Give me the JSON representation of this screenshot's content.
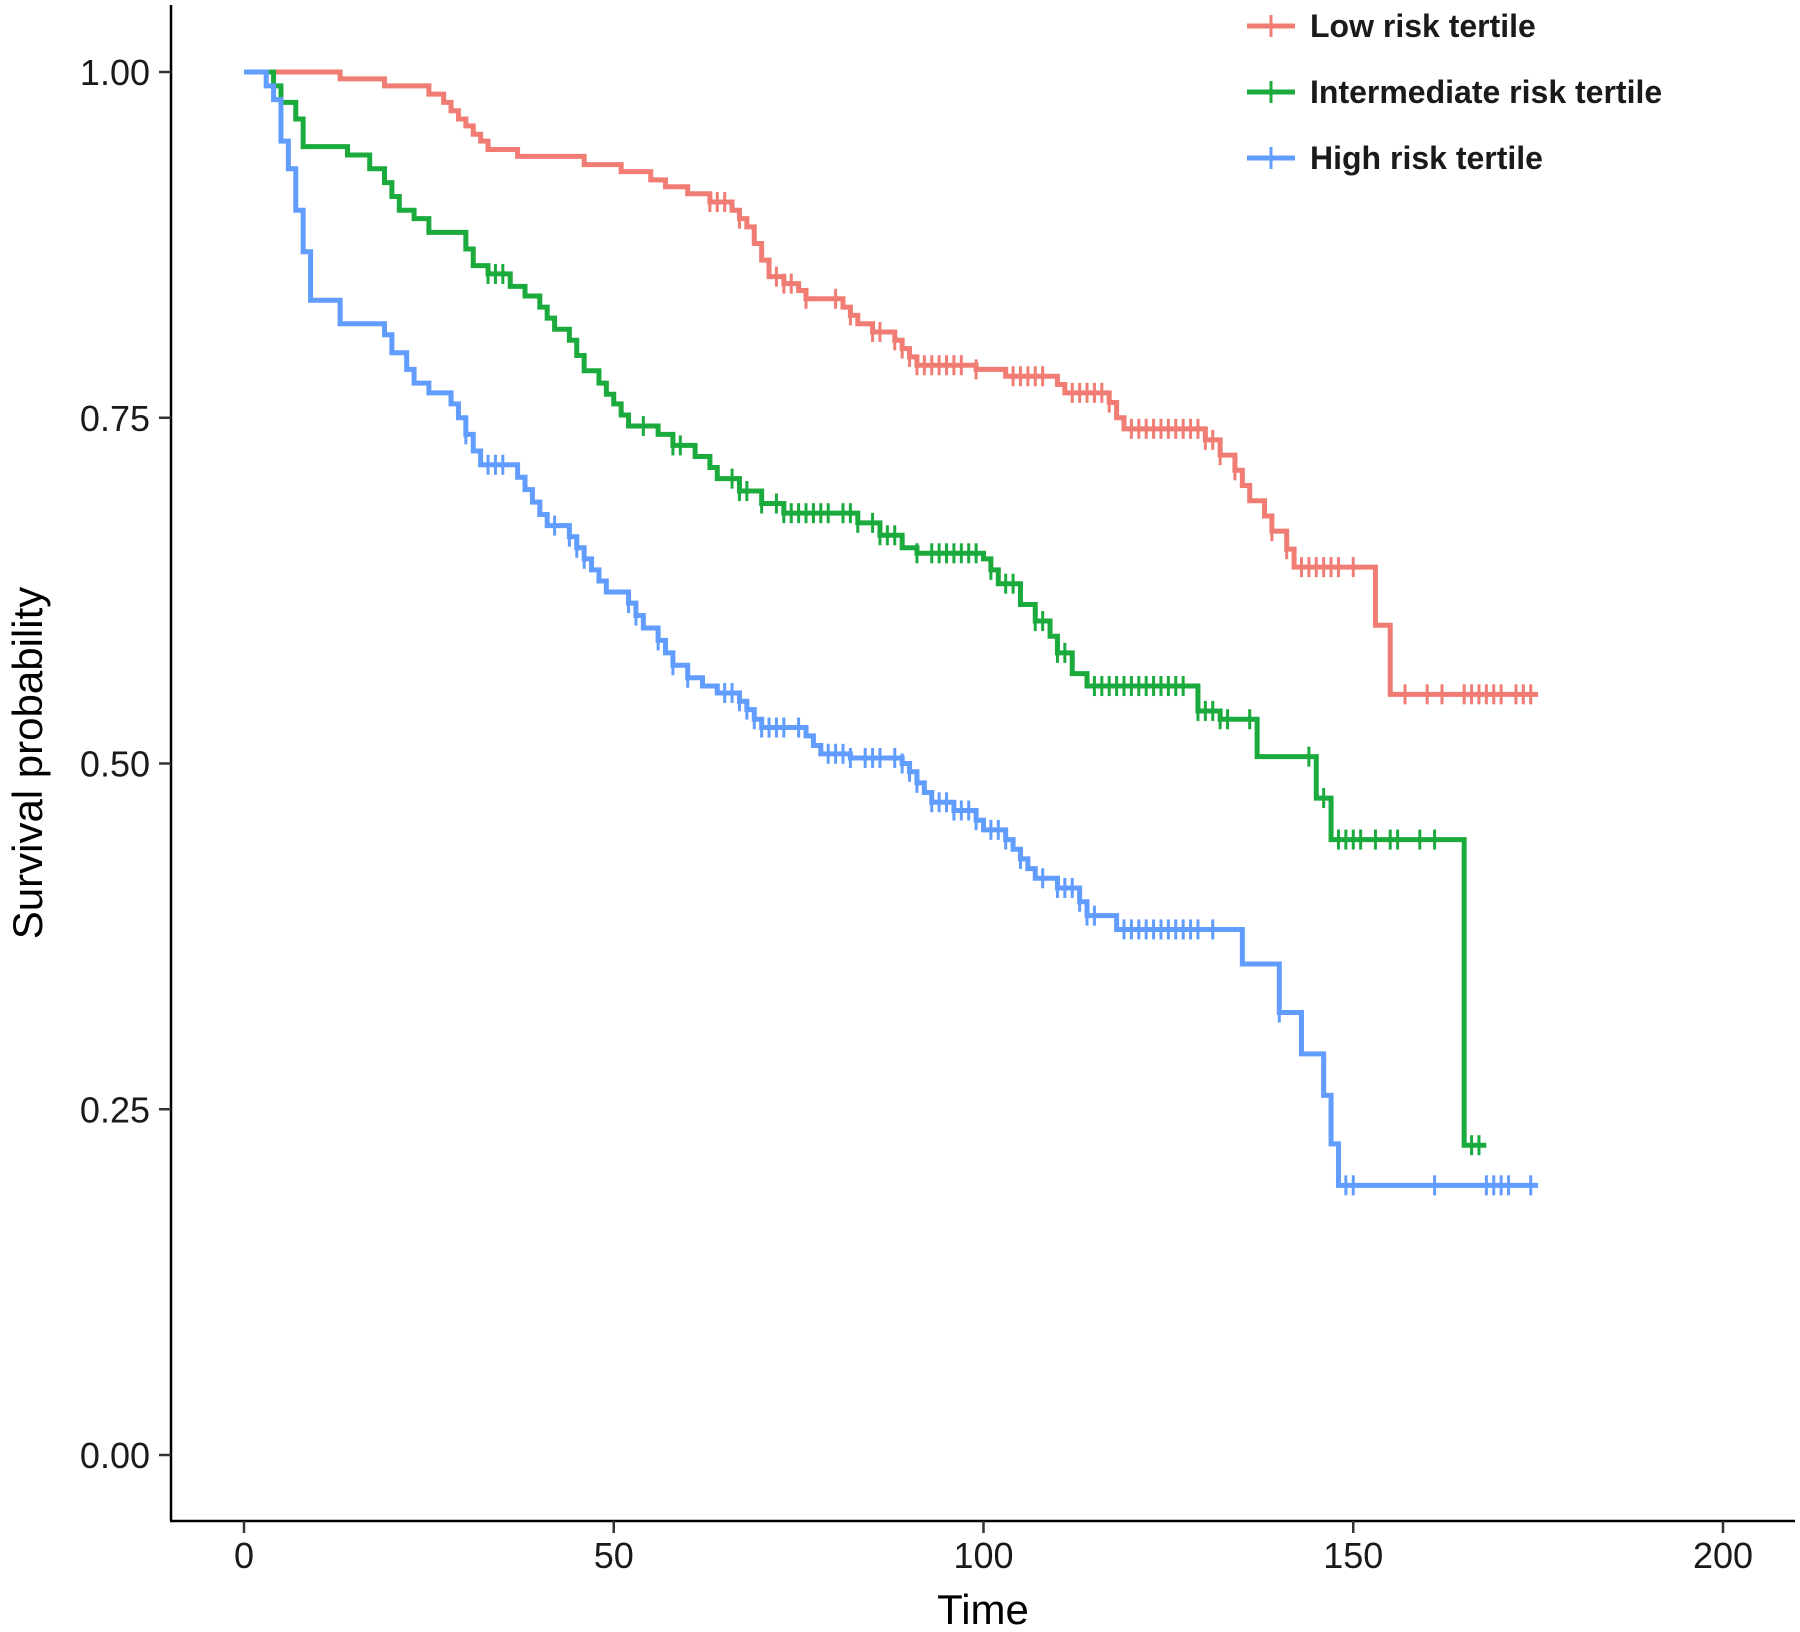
{
  "chart_data": {
    "type": "line",
    "title": "",
    "xlabel": "Time",
    "ylabel": "Survival probability",
    "xlim": [
      -10,
      210
    ],
    "ylim": [
      -0.05,
      1.05
    ],
    "x_ticks": [
      0,
      50,
      100,
      150,
      200
    ],
    "x_tick_labels": [
      "0",
      "50",
      "100",
      "150",
      "200"
    ],
    "y_ticks": [
      0,
      0.25,
      0.5,
      0.75,
      1.0
    ],
    "y_tick_labels": [
      "0.00",
      "0.25",
      "0.50",
      "0.75",
      "1.00"
    ],
    "grid": false,
    "legend_position": "top-right",
    "series": [
      {
        "name": "Low risk tertile",
        "color": "#F07C73",
        "steps": [
          [
            0,
            1.0
          ],
          [
            13,
            0.995
          ],
          [
            19,
            0.99
          ],
          [
            25,
            0.984
          ],
          [
            27,
            0.978
          ],
          [
            28,
            0.972
          ],
          [
            29,
            0.966
          ],
          [
            30,
            0.961
          ],
          [
            31,
            0.955
          ],
          [
            32,
            0.95
          ],
          [
            33,
            0.944
          ],
          [
            37,
            0.939
          ],
          [
            46,
            0.933
          ],
          [
            51,
            0.928
          ],
          [
            55,
            0.922
          ],
          [
            57,
            0.917
          ],
          [
            60,
            0.912
          ],
          [
            63,
            0.906
          ],
          [
            66,
            0.9
          ],
          [
            67,
            0.894
          ],
          [
            68,
            0.888
          ],
          [
            69,
            0.876
          ],
          [
            70,
            0.864
          ],
          [
            71,
            0.852
          ],
          [
            73,
            0.847
          ],
          [
            75,
            0.842
          ],
          [
            76,
            0.836
          ],
          [
            81,
            0.83
          ],
          [
            82,
            0.824
          ],
          [
            83,
            0.818
          ],
          [
            85,
            0.812
          ],
          [
            88,
            0.806
          ],
          [
            89,
            0.8
          ],
          [
            90,
            0.794
          ],
          [
            91,
            0.788
          ],
          [
            99,
            0.785
          ],
          [
            103,
            0.78
          ],
          [
            110,
            0.774
          ],
          [
            111,
            0.768
          ],
          [
            117,
            0.761
          ],
          [
            118,
            0.75
          ],
          [
            119,
            0.742
          ],
          [
            130,
            0.734
          ],
          [
            132,
            0.723
          ],
          [
            134,
            0.712
          ],
          [
            135,
            0.701
          ],
          [
            136,
            0.69
          ],
          [
            138,
            0.679
          ],
          [
            139,
            0.668
          ],
          [
            141,
            0.655
          ],
          [
            142,
            0.642
          ],
          [
            153,
            0.6
          ],
          [
            155,
            0.55
          ],
          [
            175,
            0.55
          ]
        ],
        "censor_x": [
          63,
          64,
          65,
          67,
          72,
          73,
          74,
          76,
          80,
          82,
          85,
          86,
          88,
          89,
          90,
          91,
          92,
          93,
          94,
          95,
          96,
          97,
          99,
          104,
          105,
          106,
          107,
          108,
          112,
          113,
          114,
          115,
          116,
          117,
          120,
          121,
          122,
          123,
          124,
          125,
          126,
          127,
          128,
          129,
          130,
          131,
          132,
          134,
          139,
          141,
          143,
          144,
          145,
          146,
          147,
          148,
          150,
          157,
          160,
          162,
          165,
          166,
          167,
          168,
          169,
          170,
          172,
          173,
          174
        ]
      },
      {
        "name": "Intermediate risk tertile",
        "color": "#1BAA3C",
        "steps": [
          [
            0,
            1.0
          ],
          [
            4,
            0.99
          ],
          [
            5,
            0.978
          ],
          [
            7,
            0.966
          ],
          [
            8,
            0.946
          ],
          [
            14,
            0.94
          ],
          [
            17,
            0.93
          ],
          [
            19,
            0.92
          ],
          [
            20,
            0.91
          ],
          [
            21,
            0.9
          ],
          [
            23,
            0.894
          ],
          [
            25,
            0.884
          ],
          [
            30,
            0.872
          ],
          [
            31,
            0.86
          ],
          [
            33,
            0.854
          ],
          [
            36,
            0.845
          ],
          [
            38,
            0.838
          ],
          [
            40,
            0.83
          ],
          [
            41,
            0.822
          ],
          [
            42,
            0.814
          ],
          [
            44,
            0.806
          ],
          [
            45,
            0.795
          ],
          [
            46,
            0.784
          ],
          [
            48,
            0.775
          ],
          [
            49,
            0.767
          ],
          [
            50,
            0.76
          ],
          [
            51,
            0.752
          ],
          [
            52,
            0.744
          ],
          [
            56,
            0.738
          ],
          [
            58,
            0.73
          ],
          [
            61,
            0.722
          ],
          [
            63,
            0.714
          ],
          [
            64,
            0.706
          ],
          [
            67,
            0.697
          ],
          [
            70,
            0.688
          ],
          [
            73,
            0.681
          ],
          [
            83,
            0.674
          ],
          [
            86,
            0.665
          ],
          [
            89,
            0.656
          ],
          [
            91,
            0.652
          ],
          [
            100,
            0.648
          ],
          [
            101,
            0.64
          ],
          [
            102,
            0.63
          ],
          [
            105,
            0.615
          ],
          [
            107,
            0.603
          ],
          [
            109,
            0.592
          ],
          [
            110,
            0.58
          ],
          [
            112,
            0.565
          ],
          [
            114,
            0.556
          ],
          [
            129,
            0.538
          ],
          [
            132,
            0.532
          ],
          [
            137,
            0.505
          ],
          [
            145,
            0.475
          ],
          [
            147,
            0.445
          ],
          [
            165,
            0.224
          ],
          [
            168,
            0.224
          ]
        ],
        "censor_x": [
          33,
          34,
          35,
          54,
          58,
          59,
          66,
          67,
          68,
          70,
          72,
          73,
          74,
          75,
          76,
          77,
          78,
          79,
          81,
          82,
          83,
          85,
          86,
          87,
          88,
          91,
          93,
          94,
          95,
          96,
          97,
          98,
          99,
          101,
          103,
          104,
          107,
          108,
          110,
          111,
          115,
          116,
          117,
          118,
          119,
          120,
          121,
          122,
          123,
          124,
          125,
          126,
          127,
          129,
          130,
          131,
          132,
          133,
          136,
          144,
          146,
          148,
          149,
          150,
          151,
          153,
          155,
          156,
          159,
          161,
          166,
          167
        ]
      },
      {
        "name": "High risk tertile",
        "color": "#619CFF",
        "steps": [
          [
            0,
            1.0
          ],
          [
            3,
            0.99
          ],
          [
            4,
            0.98
          ],
          [
            5,
            0.95
          ],
          [
            6,
            0.93
          ],
          [
            7,
            0.9
          ],
          [
            8,
            0.87
          ],
          [
            9,
            0.835
          ],
          [
            13,
            0.818
          ],
          [
            19,
            0.81
          ],
          [
            20,
            0.797
          ],
          [
            22,
            0.785
          ],
          [
            23,
            0.775
          ],
          [
            25,
            0.768
          ],
          [
            28,
            0.76
          ],
          [
            29,
            0.75
          ],
          [
            30,
            0.738
          ],
          [
            31,
            0.726
          ],
          [
            32,
            0.716
          ],
          [
            37,
            0.707
          ],
          [
            38,
            0.698
          ],
          [
            39,
            0.689
          ],
          [
            40,
            0.68
          ],
          [
            41,
            0.672
          ],
          [
            44,
            0.664
          ],
          [
            45,
            0.656
          ],
          [
            46,
            0.648
          ],
          [
            47,
            0.64
          ],
          [
            48,
            0.632
          ],
          [
            49,
            0.624
          ],
          [
            52,
            0.616
          ],
          [
            53,
            0.607
          ],
          [
            54,
            0.598
          ],
          [
            56,
            0.589
          ],
          [
            57,
            0.58
          ],
          [
            58,
            0.571
          ],
          [
            60,
            0.562
          ],
          [
            62,
            0.556
          ],
          [
            64,
            0.551
          ],
          [
            67,
            0.545
          ],
          [
            68,
            0.539
          ],
          [
            69,
            0.532
          ],
          [
            70,
            0.526
          ],
          [
            76,
            0.52
          ],
          [
            77,
            0.513
          ],
          [
            78,
            0.507
          ],
          [
            82,
            0.504
          ],
          [
            89,
            0.5
          ],
          [
            90,
            0.494
          ],
          [
            91,
            0.486
          ],
          [
            92,
            0.479
          ],
          [
            93,
            0.472
          ],
          [
            96,
            0.466
          ],
          [
            99,
            0.459
          ],
          [
            100,
            0.452
          ],
          [
            103,
            0.445
          ],
          [
            104,
            0.438
          ],
          [
            105,
            0.431
          ],
          [
            106,
            0.424
          ],
          [
            107,
            0.417
          ],
          [
            110,
            0.41
          ],
          [
            113,
            0.4
          ],
          [
            114,
            0.39
          ],
          [
            118,
            0.38
          ],
          [
            130,
            0.38
          ],
          [
            135,
            0.355
          ],
          [
            140,
            0.32
          ],
          [
            143,
            0.29
          ],
          [
            146,
            0.26
          ],
          [
            147,
            0.225
          ],
          [
            148,
            0.195
          ],
          [
            175,
            0.195
          ]
        ],
        "censor_x": [
          30,
          33,
          34,
          35,
          42,
          44,
          45,
          46,
          52,
          53,
          56,
          58,
          60,
          65,
          66,
          67,
          68,
          69,
          70,
          71,
          72,
          73,
          75,
          79,
          80,
          81,
          82,
          84,
          85,
          86,
          88,
          89,
          90,
          91,
          93,
          94,
          95,
          96,
          97,
          98,
          99,
          101,
          102,
          103,
          105,
          108,
          110,
          111,
          112,
          113,
          114,
          115,
          119,
          120,
          121,
          122,
          123,
          124,
          125,
          126,
          127,
          128,
          129,
          131,
          140,
          149,
          150,
          161,
          168,
          169,
          170,
          171,
          174
        ]
      }
    ]
  }
}
